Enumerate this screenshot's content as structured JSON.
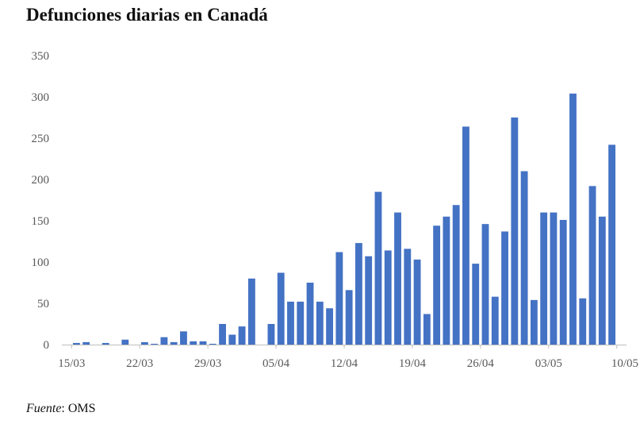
{
  "chart_data": {
    "type": "bar",
    "title": "Defunciones diarias en Canadá",
    "xlabel": "",
    "ylabel": "",
    "ylim": [
      0,
      350
    ],
    "y_ticks": [
      0,
      50,
      100,
      150,
      200,
      250,
      300,
      350
    ],
    "x_tick_labels": [
      "15/03",
      "22/03",
      "29/03",
      "05/04",
      "12/04",
      "19/04",
      "26/04",
      "03/05",
      "10/05"
    ],
    "grid": false,
    "legend": "none",
    "bar_color": "#4472C4",
    "categories": [
      "14/03",
      "15/03",
      "16/03",
      "17/03",
      "18/03",
      "19/03",
      "20/03",
      "21/03",
      "22/03",
      "23/03",
      "24/03",
      "25/03",
      "26/03",
      "27/03",
      "28/03",
      "29/03",
      "30/03",
      "31/03",
      "01/04",
      "02/04",
      "03/04",
      "04/04",
      "05/04",
      "06/04",
      "07/04",
      "08/04",
      "09/04",
      "10/04",
      "11/04",
      "12/04",
      "13/04",
      "14/04",
      "15/04",
      "16/04",
      "17/04",
      "18/04",
      "19/04",
      "20/04",
      "21/04",
      "22/04",
      "23/04",
      "24/04",
      "25/04",
      "26/04",
      "27/04",
      "28/04",
      "29/04",
      "30/04",
      "01/05",
      "02/05",
      "03/05",
      "04/05",
      "05/05",
      "06/05",
      "07/05",
      "08/05",
      "09/05",
      "10/05"
    ],
    "values": [
      0,
      2,
      3,
      0,
      2,
      0,
      6,
      0,
      3,
      1,
      9,
      3,
      16,
      4,
      4,
      1,
      25,
      12,
      22,
      80,
      0,
      25,
      87,
      52,
      52,
      75,
      52,
      44,
      112,
      66,
      123,
      107,
      185,
      114,
      160,
      116,
      103,
      37,
      144,
      155,
      169,
      264,
      98,
      146,
      58,
      137,
      275,
      210,
      54,
      160,
      160,
      151,
      304,
      56,
      192,
      155,
      242,
      0
    ]
  },
  "footer": {
    "source_prefix": "Fuente",
    "source_text": ": OMS"
  }
}
